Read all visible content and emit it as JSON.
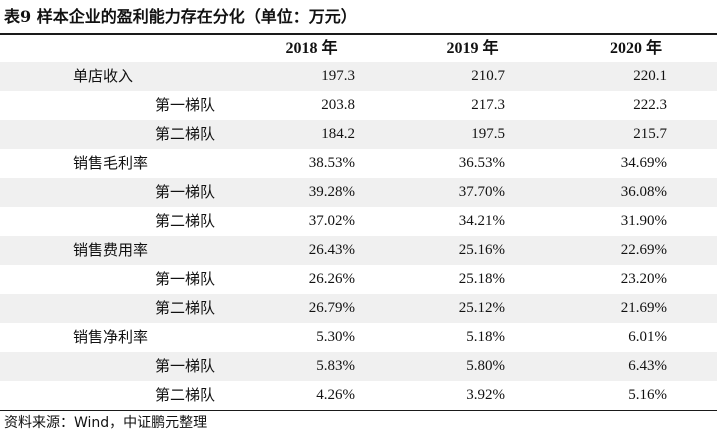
{
  "title": "表9 样本企业的盈利能力存在分化（单位：万元）",
  "headers": [
    "",
    "2018 年",
    "2019 年",
    "2020 年"
  ],
  "rows": [
    {
      "label": "单店收入",
      "level": "main",
      "values": [
        "197.3",
        "210.7",
        "220.1"
      ]
    },
    {
      "label": "第一梯队",
      "level": "sub",
      "values": [
        "203.8",
        "217.3",
        "222.3"
      ]
    },
    {
      "label": "第二梯队",
      "level": "sub",
      "values": [
        "184.2",
        "197.5",
        "215.7"
      ]
    },
    {
      "label": "销售毛利率",
      "level": "main",
      "values": [
        "38.53%",
        "36.53%",
        "34.69%"
      ]
    },
    {
      "label": "第一梯队",
      "level": "sub",
      "values": [
        "39.28%",
        "37.70%",
        "36.08%"
      ]
    },
    {
      "label": "第二梯队",
      "level": "sub",
      "values": [
        "37.02%",
        "34.21%",
        "31.90%"
      ]
    },
    {
      "label": "销售费用率",
      "level": "main",
      "values": [
        "26.43%",
        "25.16%",
        "22.69%"
      ]
    },
    {
      "label": "第一梯队",
      "level": "sub",
      "values": [
        "26.26%",
        "25.18%",
        "23.20%"
      ]
    },
    {
      "label": "第二梯队",
      "level": "sub",
      "values": [
        "26.79%",
        "25.12%",
        "21.69%"
      ]
    },
    {
      "label": "销售净利率",
      "level": "main",
      "values": [
        "5.30%",
        "5.18%",
        "6.01%"
      ]
    },
    {
      "label": "第一梯队",
      "level": "sub",
      "values": [
        "5.83%",
        "5.80%",
        "6.43%"
      ]
    },
    {
      "label": "第二梯队",
      "level": "sub",
      "values": [
        "4.26%",
        "3.92%",
        "5.16%"
      ]
    }
  ],
  "source": "资料来源：Wind，中证鹏元整理",
  "colors": {
    "row_shade": "#f0f0f0",
    "rule": "#1a1a1a"
  }
}
